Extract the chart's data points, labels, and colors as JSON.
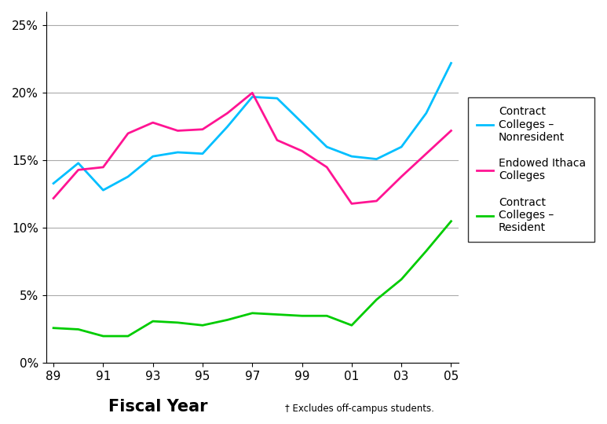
{
  "years": [
    89,
    90,
    91,
    92,
    93,
    94,
    95,
    96,
    97,
    98,
    99,
    100,
    101,
    102,
    103,
    104,
    105
  ],
  "contract_nonresident": [
    0.133,
    0.148,
    0.128,
    0.138,
    0.153,
    0.156,
    0.155,
    0.175,
    0.197,
    0.196,
    0.178,
    0.16,
    0.153,
    0.151,
    0.16,
    0.185,
    0.222
  ],
  "endowed_ithaca": [
    0.122,
    0.143,
    0.145,
    0.17,
    0.178,
    0.172,
    0.173,
    0.185,
    0.2,
    0.165,
    0.157,
    0.145,
    0.118,
    0.12,
    0.138,
    0.155,
    0.172
  ],
  "contract_resident": [
    0.026,
    0.025,
    0.02,
    0.02,
    0.031,
    0.03,
    0.028,
    0.032,
    0.037,
    0.036,
    0.035,
    0.035,
    0.028,
    0.047,
    0.062,
    0.083,
    0.105
  ],
  "color_nonresident": "#00BFFF",
  "color_endowed": "#FF1493",
  "color_resident": "#00CC00",
  "xlabel": "Fiscal Year",
  "footnote": "† Excludes off-campus students.",
  "legend_label_0": "Contract\nColleges –\nNonresident",
  "legend_label_1": "Endowed Ithaca\nColleges",
  "legend_label_2": "Contract\nColleges –\nResident",
  "ylim": [
    0.0,
    0.26
  ],
  "yticks": [
    0.0,
    0.05,
    0.1,
    0.15,
    0.2,
    0.25
  ],
  "xtick_labels": [
    "89",
    "91",
    "93",
    "95",
    "97",
    "99",
    "01",
    "03",
    "05"
  ],
  "xtick_positions_idx": [
    0,
    2,
    4,
    6,
    8,
    10,
    12,
    14,
    16
  ]
}
